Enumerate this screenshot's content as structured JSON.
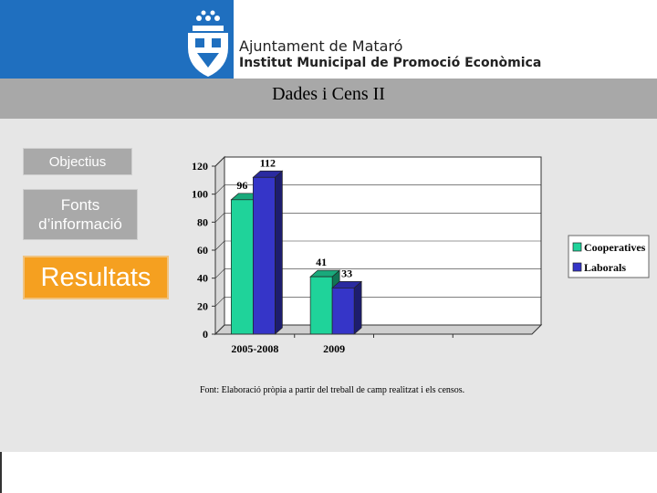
{
  "header": {
    "org_line1": "Ajuntament de Mataró",
    "org_line2": "Institut Municipal de Promoció Econòmica",
    "brand_color": "#1f6fbf"
  },
  "slide": {
    "title": "Dades i Cens II"
  },
  "nav": {
    "items": [
      {
        "label": "Objectius"
      },
      {
        "label": "Fonts d’informació"
      },
      {
        "label": "Resultats"
      }
    ],
    "active_color": "#f5a020"
  },
  "chart_data": {
    "type": "bar",
    "categories": [
      "2005-2008",
      "2009"
    ],
    "series": [
      {
        "name": "Cooperatives",
        "values": [
          96,
          41
        ],
        "color": "#1fd39a"
      },
      {
        "name": "Laborals",
        "values": [
          112,
          33
        ],
        "color": "#3535c8"
      }
    ],
    "data_labels": true,
    "ylim": [
      0,
      120
    ],
    "yticks": [
      "0",
      "20",
      "40",
      "60",
      "80",
      "100",
      "120"
    ],
    "grid": true,
    "legend_position": "right",
    "style": "3d"
  },
  "footer": {
    "source": "Font: Elaboració pròpia a partir del treball de camp realitzat i els censos."
  }
}
